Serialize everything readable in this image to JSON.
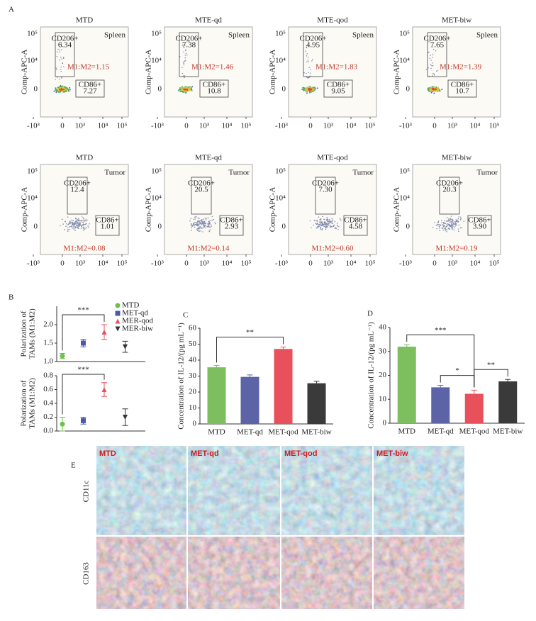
{
  "flow": {
    "panel": "A",
    "y_label": "Comp-APC-A",
    "x_tick_labels": [
      "-10³",
      "0",
      "10³",
      "10⁴",
      "10⁵"
    ],
    "y_tick_labels": [
      "10⁵",
      "10⁴",
      "0"
    ],
    "gate_cd206": "CD206+",
    "gate_cd86": "CD86+",
    "rows": [
      {
        "tissue": "Spleen",
        "plots": [
          {
            "title": "MTD",
            "cd206": "6.34",
            "cd86": "7.27",
            "ratio": "M1:M2=1.15"
          },
          {
            "title": "MTE-qd",
            "cd206": "7.38",
            "cd86": "10.8",
            "ratio": "M1:M2=1.46"
          },
          {
            "title": "MTE-qod",
            "cd206": "4.95",
            "cd86": "9.05",
            "ratio": "M1:M2=1.83"
          },
          {
            "title": "MET-biw",
            "cd206": "7.65",
            "cd86": "10.7",
            "ratio": "M1:M2=1.39"
          }
        ]
      },
      {
        "tissue": "Tumor",
        "plots": [
          {
            "title": "MTD",
            "cd206": "12.4",
            "cd86": "1.01",
            "ratio": "M1:M2=0.08"
          },
          {
            "title": "MTE-qd",
            "cd206": "20.5",
            "cd86": "2.93",
            "ratio": "M1:M2=0.14"
          },
          {
            "title": "MTE-qod",
            "cd206": "7.30",
            "cd86": "4.58",
            "ratio": "M1:M2=0.60"
          },
          {
            "title": "MET-biw",
            "cd206": "20.3",
            "cd86": "3.90",
            "ratio": "M1:M2=0.19"
          }
        ]
      }
    ]
  },
  "ihc": {
    "panel": "E",
    "columns": [
      "MTD",
      "MET-qd",
      "MET-qod",
      "MET-biw"
    ],
    "rows": [
      "CD11c",
      "CD163"
    ]
  },
  "chart_data": [
    {
      "type": "errorbar",
      "panel": "B",
      "y_label": [
        "Polarization of",
        "TAMs (M1:M2)"
      ],
      "categories": [
        "MTD",
        "MET-qd",
        "MER-qod",
        "MER-biw"
      ],
      "legend": true,
      "values": [
        1.15,
        1.5,
        1.8,
        1.4
      ],
      "errors": [
        0.07,
        0.1,
        0.2,
        0.15
      ],
      "colors": [
        "#6cc24a",
        "#4a5aa8",
        "#e8505b",
        "#333333"
      ],
      "markers": [
        "circle",
        "square",
        "triangle-up",
        "triangle-down"
      ],
      "ylim": [
        1.0,
        2.5
      ],
      "yticks": [
        {
          "value": 1,
          "label": "1.0"
        },
        1.5,
        {
          "value": 2,
          "label": "2.0"
        }
      ],
      "significance": [
        {
          "from": 0,
          "to": 2,
          "label": "***"
        }
      ]
    },
    {
      "type": "errorbar",
      "y_label": [
        "Polarization of",
        "TAMs (M1:M2)"
      ],
      "legend": false,
      "values": [
        0.1,
        0.15,
        0.6,
        0.2
      ],
      "errors": [
        0.1,
        0.05,
        0.1,
        0.12
      ],
      "colors": [
        "#6cc24a",
        "#4a5aa8",
        "#e8505b",
        "#333333"
      ],
      "markers": [
        "circle",
        "square",
        "triangle-up",
        "triangle-down"
      ],
      "ylim": [
        0,
        0.8
      ],
      "yticks": [
        {
          "value": 0,
          "label": "0.0"
        },
        0.2,
        0.4,
        0.6,
        0.8
      ],
      "significance": [
        {
          "from": 0,
          "to": 2,
          "label": "***"
        }
      ]
    },
    {
      "type": "bar",
      "panel": "C",
      "y_label": "Concentration of IL-12/(pg mL⁻¹)",
      "categories": [
        "MTD",
        "MET-qd",
        "MET-qod",
        "MET-biw"
      ],
      "values": [
        35.5,
        29.5,
        47,
        25.5
      ],
      "errors": [
        1.2,
        1.2,
        1.2,
        1.2
      ],
      "colors": [
        "#7dbf5e",
        "#5c63a6",
        "#e8505b",
        "#3a3a3a"
      ],
      "ylim": [
        0,
        60
      ],
      "yticks": [
        0,
        10,
        20,
        30,
        40,
        50,
        60
      ],
      "significance": [
        {
          "from": 0,
          "to": 2,
          "label": "**"
        }
      ]
    },
    {
      "type": "bar",
      "panel": "D",
      "y_label": "Concentration of IL-12/(pg mL⁻¹)",
      "categories": [
        "MTD",
        "MET-qd",
        "MET-qod",
        "MET-biw"
      ],
      "values": [
        32,
        15,
        12.3,
        17.5
      ],
      "errors": [
        0.8,
        0.8,
        1.5,
        0.8
      ],
      "colors": [
        "#7dbf5e",
        "#5c63a6",
        "#e8505b",
        "#3a3a3a"
      ],
      "ylim": [
        0,
        40
      ],
      "yticks": [
        0,
        10,
        20,
        30,
        40
      ],
      "significance": [
        {
          "from": 0,
          "to": 2,
          "label": "***"
        },
        {
          "from": 1,
          "to": 2,
          "label": "*"
        },
        {
          "from": 2,
          "to": 3,
          "label": "**"
        }
      ]
    }
  ]
}
